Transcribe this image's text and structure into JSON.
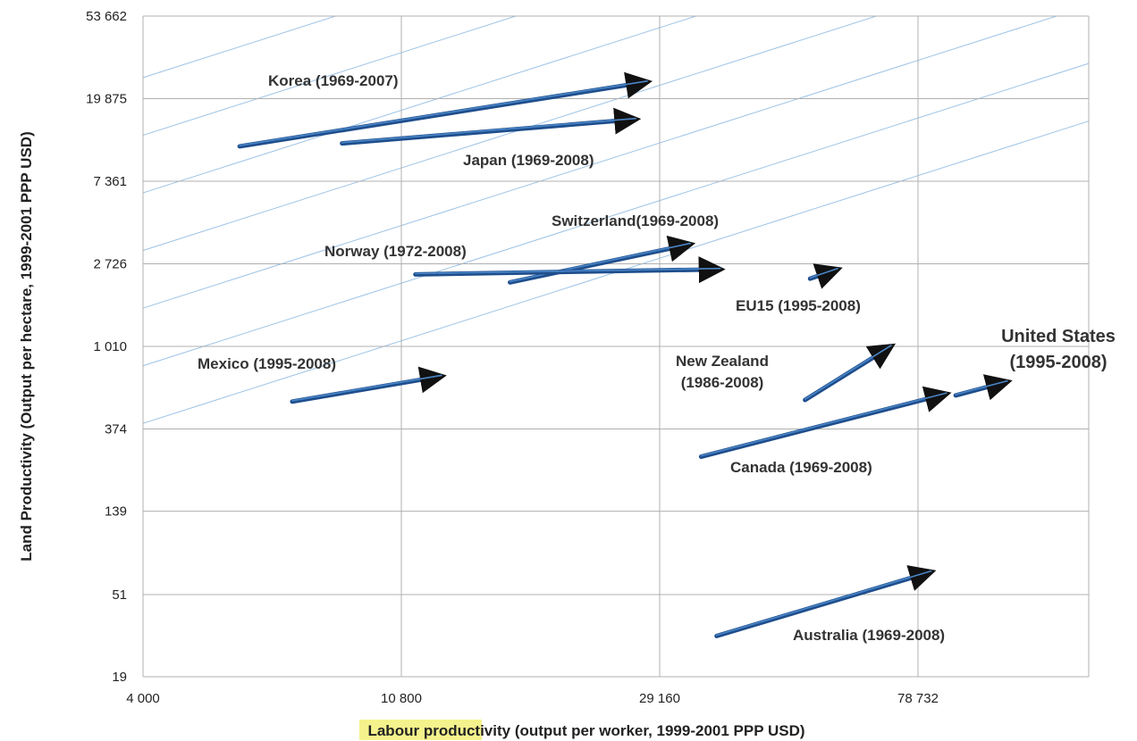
{
  "chart_data": {
    "type": "line",
    "xlabel_parts": [
      "Labour ",
      "productivity",
      " (output per worker, 1999-2001 PPP USD)"
    ],
    "xlabel_highlight": "#f4f28c",
    "ylabel": "Land Productivity (Output per hectare, 1999-2001 PPP USD)",
    "x_scale": "log",
    "y_scale": "log",
    "xlim": [
      4000,
      150000
    ],
    "ylim": [
      19,
      53662
    ],
    "x_ticks": [
      4000,
      10800,
      29160,
      78732
    ],
    "x_tick_labels": [
      "4 000",
      "10 800",
      "29 160",
      "78 732"
    ],
    "y_ticks": [
      19,
      51,
      139,
      374,
      1010,
      2726,
      7361,
      19875,
      53662
    ],
    "y_tick_labels": [
      "19",
      "51",
      "139",
      "374",
      "1 010",
      "2 726",
      "7 361",
      "19 875",
      "53 662"
    ],
    "grid": true,
    "colors": {
      "arrow": "#1f4e8c",
      "arrow_highlight": "#4a86c8",
      "diagonal": "#9dc3e6",
      "grid": "#b0b0b0"
    },
    "series": [
      {
        "name": "Korea (1969-2007)",
        "start": [
          5800,
          11200
        ],
        "end": [
          27800,
          24300
        ],
        "labels": [
          "Korea (1969-2007)"
        ]
      },
      {
        "name": "Japan (1969-2008)",
        "start": [
          8600,
          11600
        ],
        "end": [
          26600,
          15500
        ],
        "labels": [
          "Japan (1969-2008)"
        ]
      },
      {
        "name": "Switzerland(1969-2008)",
        "start": [
          16400,
          2180
        ],
        "end": [
          32800,
          3450
        ],
        "labels": [
          "Switzerland(1969-2008)"
        ]
      },
      {
        "name": "Norway (1972-2008)",
        "start": [
          11400,
          2400
        ],
        "end": [
          36800,
          2550
        ],
        "labels": [
          "Norway (1972-2008)"
        ]
      },
      {
        "name": "EU15 (1995-2008)",
        "start": [
          52000,
          2280
        ],
        "end": [
          57800,
          2550
        ],
        "labels": [
          "EU15 (1995-2008)"
        ]
      },
      {
        "name": "Mexico (1995-2008)",
        "start": [
          7100,
          520
        ],
        "end": [
          12600,
          705
        ],
        "labels": [
          "Mexico (1995-2008)"
        ]
      },
      {
        "name": "New Zealand (1986-2008)",
        "start": [
          51000,
          530
        ],
        "end": [
          71000,
          1010
        ],
        "labels": [
          "New Zealand",
          "(1986-2008)"
        ]
      },
      {
        "name": "United States (1995-2008)",
        "start": [
          91000,
          560
        ],
        "end": [
          111000,
          660
        ],
        "labels": [
          "United States",
          "(1995-2008)"
        ]
      },
      {
        "name": "Canada (1969-2008)",
        "start": [
          34200,
          268
        ],
        "end": [
          87800,
          570
        ],
        "labels": [
          "Canada (1969-2008)"
        ]
      },
      {
        "name": "Australia (1969-2008)",
        "start": [
          36300,
          31
        ],
        "end": [
          82800,
          67
        ],
        "labels": [
          "Australia (1969-2008)"
        ]
      }
    ],
    "diagonal_ratios": [
      0.1,
      0.2,
      0.4,
      0.8,
      1.6,
      3.2,
      6.4
    ]
  }
}
